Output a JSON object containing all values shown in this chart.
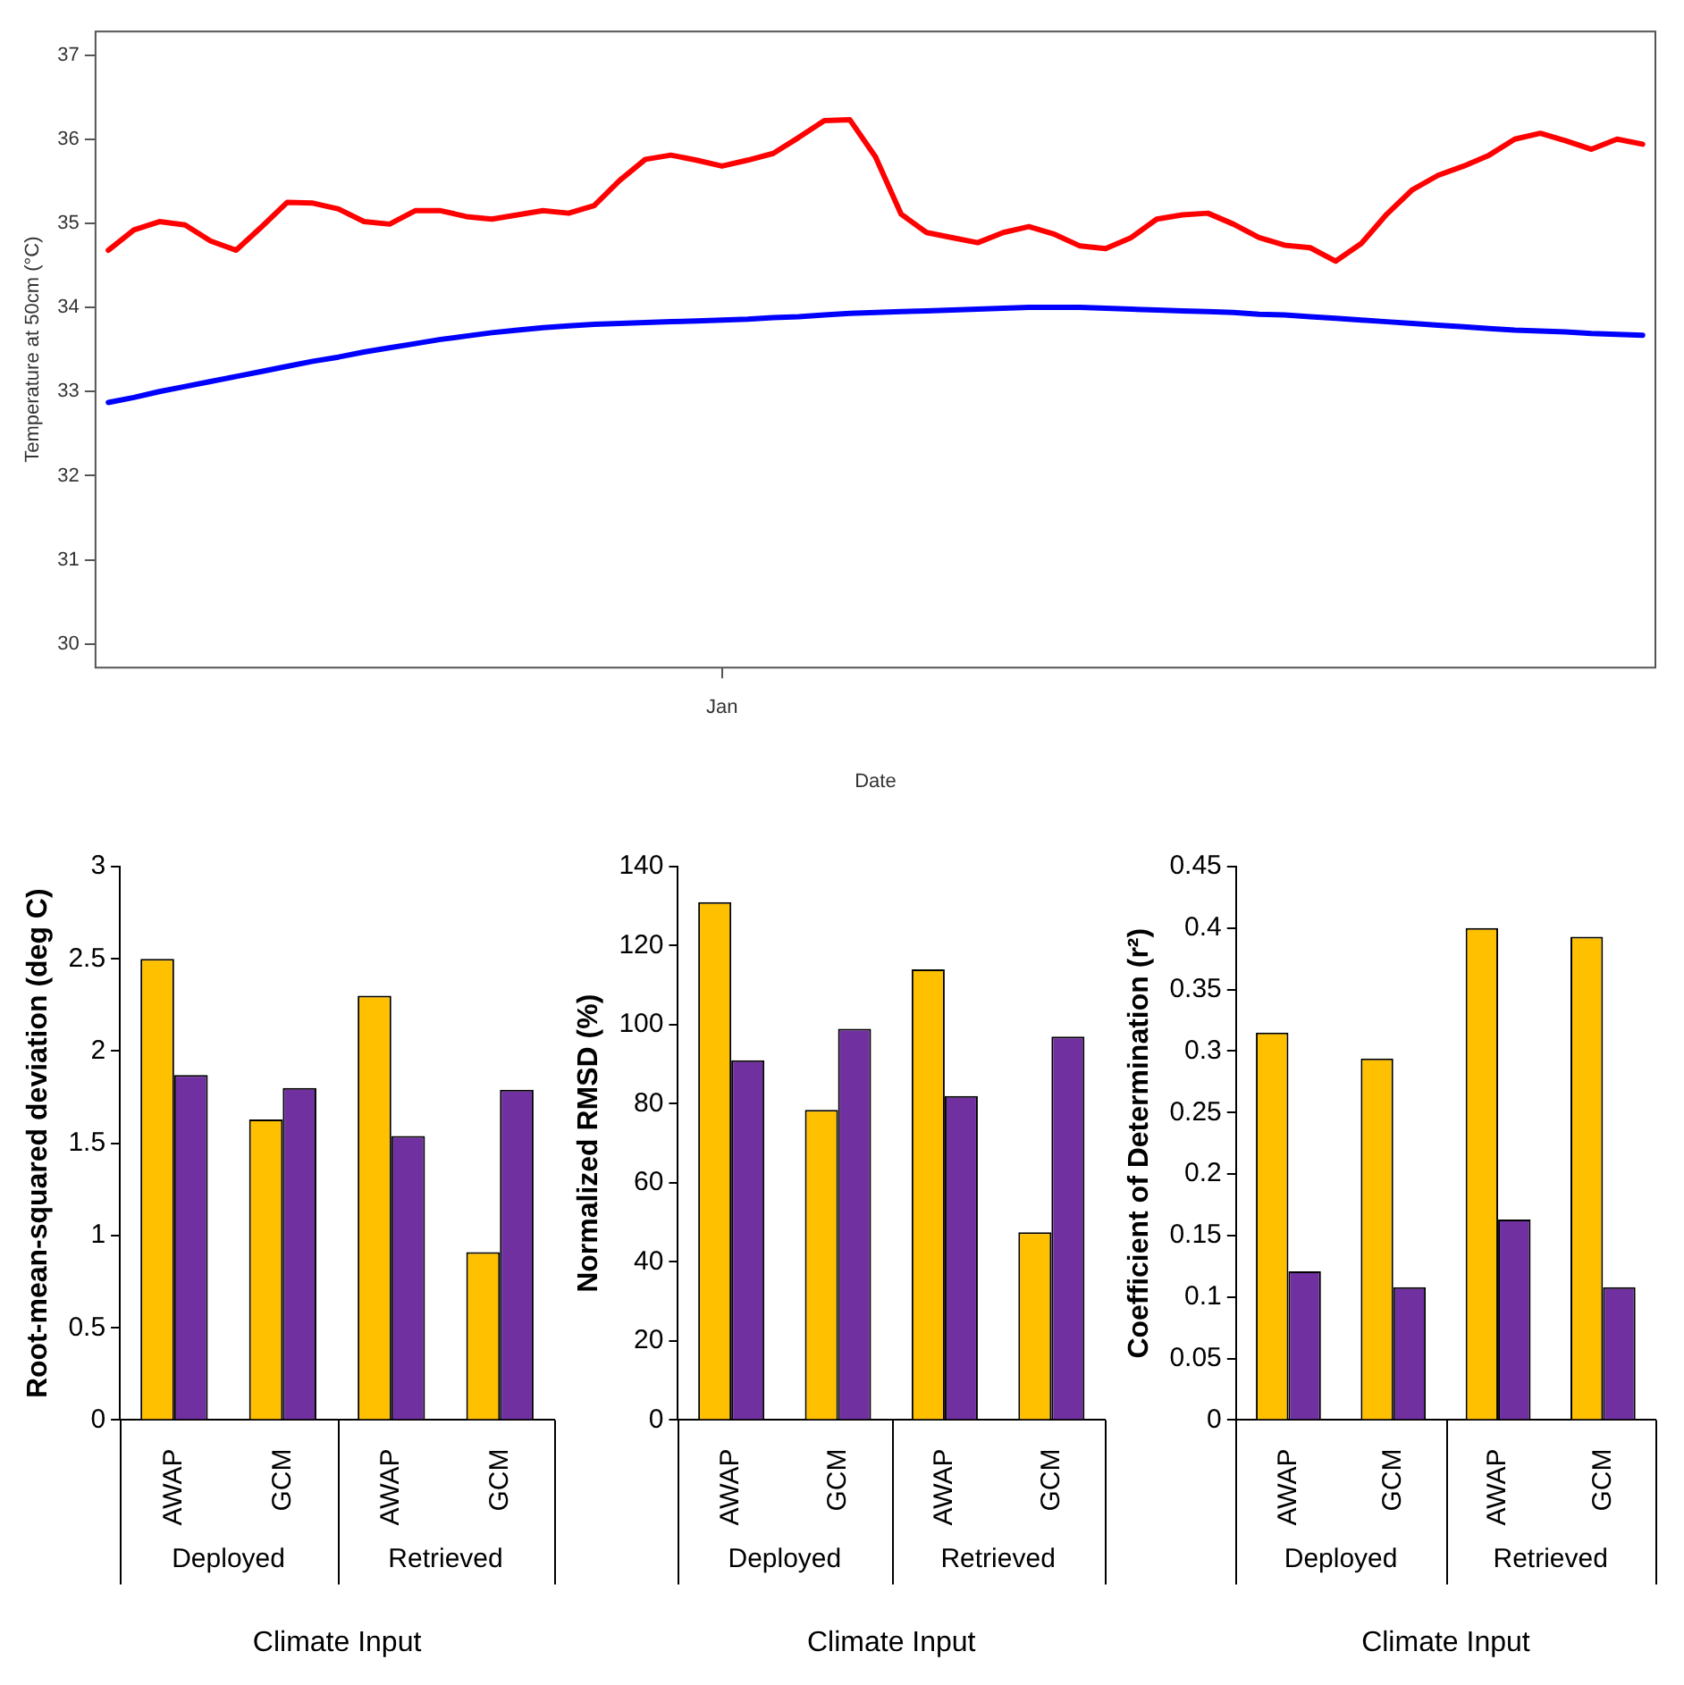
{
  "chart_data": [
    {
      "type": "line",
      "xlabel": "Date",
      "ylabel": "Temperature at 50cm (°C)",
      "categories": [
        null,
        null,
        null,
        null,
        null,
        null,
        null,
        null,
        null,
        null,
        null,
        null,
        null,
        null,
        null,
        null,
        null,
        null,
        null,
        null,
        null,
        null,
        null,
        null,
        "Jan",
        null,
        null,
        null,
        null,
        null,
        null,
        null,
        null,
        null,
        null,
        null,
        null,
        null,
        null,
        null,
        null,
        null,
        null,
        null,
        null,
        null,
        null,
        null,
        null,
        null,
        null,
        null,
        null,
        null,
        null,
        null,
        null,
        null,
        null,
        null,
        null
      ],
      "series": [
        {
          "color": "#ff0000",
          "values": [
            34.68,
            34.92,
            35.02,
            34.98,
            34.79,
            34.68,
            34.96,
            35.25,
            35.24,
            35.17,
            35.02,
            34.99,
            35.15,
            35.15,
            35.08,
            35.05,
            35.1,
            35.15,
            35.12,
            35.21,
            35.51,
            35.76,
            35.81,
            35.75,
            35.68,
            35.75,
            35.83,
            36.02,
            36.22,
            36.23,
            35.79,
            35.11,
            34.89,
            34.83,
            34.77,
            34.89,
            34.96,
            34.87,
            34.73,
            34.7,
            34.83,
            35.05,
            35.1,
            35.12,
            34.99,
            34.83,
            34.74,
            34.71,
            34.55,
            34.76,
            35.11,
            35.4,
            35.57,
            35.68,
            35.81,
            36.0,
            36.07,
            35.98,
            35.88,
            36.0,
            35.94
          ]
        },
        {
          "color": "#0000ff",
          "values": [
            32.87,
            32.93,
            33.0,
            33.06,
            33.12,
            33.18,
            33.24,
            33.3,
            33.36,
            33.41,
            33.47,
            33.52,
            33.57,
            33.62,
            33.66,
            33.7,
            33.73,
            33.76,
            33.78,
            33.8,
            33.81,
            33.82,
            33.83,
            33.84,
            33.85,
            33.86,
            33.88,
            33.89,
            33.91,
            33.93,
            33.94,
            33.95,
            33.96,
            33.97,
            33.98,
            33.99,
            34.0,
            34.0,
            34.0,
            33.99,
            33.98,
            33.97,
            33.96,
            33.95,
            33.94,
            33.92,
            33.91,
            33.89,
            33.87,
            33.85,
            33.83,
            33.81,
            33.79,
            33.77,
            33.75,
            33.73,
            33.72,
            33.71,
            33.69,
            33.68,
            33.67
          ]
        }
      ],
      "ylim": [
        29.72,
        37.28
      ],
      "yticks": [
        30,
        31,
        32,
        33,
        34,
        35,
        36,
        37
      ],
      "marker": "none",
      "line_style": "solid"
    },
    {
      "type": "bar",
      "xlabel": "Climate Input",
      "ylabel": "Root-mean-squared deviation (deg C)",
      "categories": [
        "AWAP",
        "GCM",
        "AWAP",
        "GCM"
      ],
      "series": [
        {
          "color": "#ffc000",
          "values": [
            2.5,
            1.63,
            2.3,
            0.91
          ]
        },
        {
          "color": "#7030a0",
          "values": [
            1.87,
            1.8,
            1.54,
            1.79
          ]
        }
      ],
      "ylim": [
        0,
        3
      ],
      "yticks": [
        0,
        0.5,
        1,
        1.5,
        2,
        2.5,
        3
      ],
      "annotations": [
        "Deployed",
        "Retrieved"
      ]
    },
    {
      "type": "bar",
      "xlabel": "Climate Input",
      "ylabel": "Normalized RMSD (%)",
      "categories": [
        "AWAP",
        "GCM",
        "AWAP",
        "GCM"
      ],
      "series": [
        {
          "color": "#ffc000",
          "values": [
            131,
            78.5,
            114,
            47.5
          ]
        },
        {
          "color": "#7030a0",
          "values": [
            91,
            99,
            82,
            97
          ]
        }
      ],
      "ylim": [
        0,
        140
      ],
      "yticks": [
        0,
        20,
        40,
        60,
        80,
        100,
        120,
        140
      ],
      "annotations": [
        "Deployed",
        "Retrieved"
      ]
    },
    {
      "type": "bar",
      "xlabel": "Climate Input",
      "ylabel": "Coefficient of Determination (r²)",
      "categories": [
        "AWAP",
        "GCM",
        "AWAP",
        "GCM"
      ],
      "series": [
        {
          "color": "#ffc000",
          "values": [
            0.315,
            0.294,
            0.4,
            0.393
          ]
        },
        {
          "color": "#7030a0",
          "values": [
            0.121,
            0.108,
            0.163,
            0.108
          ]
        }
      ],
      "ylim": [
        0,
        0.45
      ],
      "yticks": [
        0,
        0.05,
        0.1,
        0.15,
        0.2,
        0.25,
        0.3,
        0.35,
        0.4,
        0.45
      ],
      "annotations": [
        "Deployed",
        "Retrieved"
      ]
    }
  ]
}
